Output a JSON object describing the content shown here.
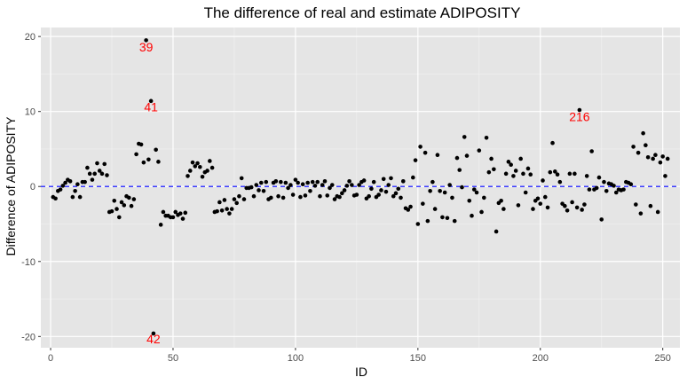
{
  "chart_data": {
    "type": "scatter",
    "title": "The difference of real and estimate ADIPOSITY",
    "xlabel": "ID",
    "ylabel": "Difference of ADIPOSITY",
    "xlim": [
      -4,
      257
    ],
    "ylim": [
      -21.5,
      21.2
    ],
    "x_ticks": [
      0,
      50,
      100,
      150,
      200,
      250
    ],
    "y_ticks": [
      -20,
      -10,
      0,
      10,
      20
    ],
    "x_tick_labels": [
      "0",
      "50",
      "100",
      "150",
      "200",
      "250"
    ],
    "y_tick_labels": [
      "-20",
      "-10",
      "0",
      "10",
      "20"
    ],
    "grid": true,
    "reference_line": {
      "y": 0,
      "style": "dashed",
      "color": "#0000ff"
    },
    "point_color": "#000000",
    "panel_background": "#e5e5e5",
    "annotation_color": "#ff0000",
    "points": [
      [
        1,
        -1.4
      ],
      [
        2,
        -1.6
      ],
      [
        3,
        -0.6
      ],
      [
        4,
        -0.4
      ],
      [
        5,
        0.1
      ],
      [
        6,
        0.5
      ],
      [
        7,
        0.9
      ],
      [
        8,
        0.7
      ],
      [
        9,
        -1.4
      ],
      [
        10,
        -0.6
      ],
      [
        11,
        0.3
      ],
      [
        12,
        -1.4
      ],
      [
        13,
        0.6
      ],
      [
        14,
        0.6
      ],
      [
        15,
        2.5
      ],
      [
        16,
        1.7
      ],
      [
        17,
        0.9
      ],
      [
        18,
        1.7
      ],
      [
        19,
        3.1
      ],
      [
        20,
        2.1
      ],
      [
        21,
        1.7
      ],
      [
        22,
        3.0
      ],
      [
        23,
        1.5
      ],
      [
        24,
        -3.4
      ],
      [
        25,
        -3.3
      ],
      [
        26,
        -1.9
      ],
      [
        27,
        -3.0
      ],
      [
        28,
        -4.1
      ],
      [
        29,
        -2.1
      ],
      [
        30,
        -2.5
      ],
      [
        31,
        -1.3
      ],
      [
        32,
        -1.5
      ],
      [
        33,
        -2.6
      ],
      [
        34,
        -1.7
      ],
      [
        35,
        4.3
      ],
      [
        36,
        5.7
      ],
      [
        37,
        5.6
      ],
      [
        38,
        3.2
      ],
      [
        39,
        19.5
      ],
      [
        40,
        3.6
      ],
      [
        41,
        11.4
      ],
      [
        42,
        -19.6
      ],
      [
        43,
        4.9
      ],
      [
        44,
        3.3
      ],
      [
        45,
        -5.1
      ],
      [
        46,
        -3.4
      ],
      [
        47,
        -3.9
      ],
      [
        48,
        -3.9
      ],
      [
        49,
        -4.1
      ],
      [
        50,
        -4.1
      ],
      [
        51,
        -3.4
      ],
      [
        52,
        -3.8
      ],
      [
        53,
        -3.6
      ],
      [
        54,
        -4.3
      ],
      [
        55,
        -3.5
      ],
      [
        56,
        1.4
      ],
      [
        57,
        2.1
      ],
      [
        58,
        3.2
      ],
      [
        59,
        2.7
      ],
      [
        60,
        3.1
      ],
      [
        61,
        2.6
      ],
      [
        62,
        1.3
      ],
      [
        63,
        1.9
      ],
      [
        64,
        2.1
      ],
      [
        65,
        3.4
      ],
      [
        66,
        2.5
      ],
      [
        67,
        -3.4
      ],
      [
        68,
        -3.3
      ],
      [
        69,
        -2.1
      ],
      [
        70,
        -3.2
      ],
      [
        71,
        -1.8
      ],
      [
        72,
        -3.0
      ],
      [
        73,
        -3.6
      ],
      [
        74,
        -3.0
      ],
      [
        75,
        -1.7
      ],
      [
        76,
        -2.2
      ],
      [
        77,
        -1.3
      ],
      [
        78,
        1.1
      ],
      [
        79,
        -1.7
      ],
      [
        80,
        -0.2
      ],
      [
        81,
        -0.2
      ],
      [
        82,
        -0.1
      ],
      [
        83,
        -1.3
      ],
      [
        84,
        0.2
      ],
      [
        85,
        -0.5
      ],
      [
        86,
        0.5
      ],
      [
        87,
        -0.6
      ],
      [
        88,
        0.6
      ],
      [
        89,
        -1.7
      ],
      [
        90,
        -1.5
      ],
      [
        91,
        0.5
      ],
      [
        92,
        0.7
      ],
      [
        93,
        -1.3
      ],
      [
        94,
        0.6
      ],
      [
        95,
        -1.5
      ],
      [
        96,
        0.5
      ],
      [
        97,
        -0.2
      ],
      [
        98,
        0.2
      ],
      [
        99,
        -1.1
      ],
      [
        100,
        0.9
      ],
      [
        101,
        0.5
      ],
      [
        102,
        -1.4
      ],
      [
        103,
        0.3
      ],
      [
        104,
        -1.2
      ],
      [
        105,
        0.5
      ],
      [
        106,
        -0.6
      ],
      [
        107,
        0.6
      ],
      [
        108,
        0.1
      ],
      [
        109,
        0.6
      ],
      [
        110,
        -1.3
      ],
      [
        111,
        0.2
      ],
      [
        112,
        0.7
      ],
      [
        113,
        -1.2
      ],
      [
        114,
        -0.2
      ],
      [
        115,
        0.2
      ],
      [
        116,
        -1.7
      ],
      [
        117,
        -1.3
      ],
      [
        118,
        -1.4
      ],
      [
        119,
        -0.9
      ],
      [
        120,
        -0.5
      ],
      [
        121,
        0.1
      ],
      [
        122,
        0.7
      ],
      [
        123,
        0.2
      ],
      [
        124,
        -1.2
      ],
      [
        125,
        -1.1
      ],
      [
        126,
        0.2
      ],
      [
        127,
        0.6
      ],
      [
        128,
        0.8
      ],
      [
        129,
        -1.6
      ],
      [
        130,
        -1.3
      ],
      [
        131,
        -0.3
      ],
      [
        132,
        0.6
      ],
      [
        133,
        -1.4
      ],
      [
        134,
        -1.1
      ],
      [
        135,
        -0.5
      ],
      [
        136,
        1.0
      ],
      [
        137,
        -0.7
      ],
      [
        138,
        0.2
      ],
      [
        139,
        1.1
      ],
      [
        140,
        -1.3
      ],
      [
        141,
        -0.9
      ],
      [
        142,
        -0.3
      ],
      [
        143,
        -1.5
      ],
      [
        144,
        0.7
      ],
      [
        145,
        -2.9
      ],
      [
        146,
        -3.1
      ],
      [
        147,
        -2.7
      ],
      [
        148,
        1.2
      ],
      [
        149,
        3.5
      ],
      [
        150,
        -5.0
      ],
      [
        151,
        5.3
      ],
      [
        152,
        -2.3
      ],
      [
        153,
        4.5
      ],
      [
        154,
        -4.6
      ],
      [
        155,
        -0.6
      ],
      [
        156,
        0.6
      ],
      [
        157,
        -3.0
      ],
      [
        158,
        4.2
      ],
      [
        159,
        -0.6
      ],
      [
        160,
        -4.1
      ],
      [
        161,
        -0.8
      ],
      [
        162,
        -4.2
      ],
      [
        163,
        0.2
      ],
      [
        164,
        -1.5
      ],
      [
        165,
        -4.6
      ],
      [
        166,
        3.8
      ],
      [
        167,
        2.2
      ],
      [
        168,
        -0.1
      ],
      [
        169,
        6.6
      ],
      [
        170,
        4.1
      ],
      [
        171,
        -1.9
      ],
      [
        172,
        -3.9
      ],
      [
        173,
        -0.4
      ],
      [
        174,
        -0.8
      ],
      [
        175,
        4.8
      ],
      [
        176,
        -3.4
      ],
      [
        177,
        -1.5
      ],
      [
        178,
        6.5
      ],
      [
        179,
        1.9
      ],
      [
        180,
        3.7
      ],
      [
        181,
        2.3
      ],
      [
        182,
        -6.0
      ],
      [
        183,
        -2.2
      ],
      [
        184,
        -1.9
      ],
      [
        185,
        -3.0
      ],
      [
        186,
        1.7
      ],
      [
        187,
        3.3
      ],
      [
        188,
        2.9
      ],
      [
        189,
        1.4
      ],
      [
        190,
        2.1
      ],
      [
        191,
        -2.5
      ],
      [
        192,
        3.7
      ],
      [
        193,
        1.7
      ],
      [
        194,
        -0.8
      ],
      [
        195,
        2.4
      ],
      [
        196,
        1.6
      ],
      [
        197,
        -3.0
      ],
      [
        198,
        -1.9
      ],
      [
        199,
        -1.6
      ],
      [
        200,
        -2.3
      ],
      [
        201,
        0.8
      ],
      [
        202,
        -1.4
      ],
      [
        203,
        -2.8
      ],
      [
        204,
        1.9
      ],
      [
        205,
        5.8
      ],
      [
        206,
        2.0
      ],
      [
        207,
        1.6
      ],
      [
        208,
        0.6
      ],
      [
        209,
        -2.3
      ],
      [
        210,
        -2.6
      ],
      [
        211,
        -3.2
      ],
      [
        212,
        1.7
      ],
      [
        213,
        -2.1
      ],
      [
        214,
        1.7
      ],
      [
        215,
        -2.8
      ],
      [
        216,
        10.2
      ],
      [
        217,
        -3.1
      ],
      [
        218,
        -2.4
      ],
      [
        219,
        1.4
      ],
      [
        220,
        -0.4
      ],
      [
        221,
        4.7
      ],
      [
        222,
        -0.4
      ],
      [
        223,
        -0.2
      ],
      [
        224,
        1.2
      ],
      [
        225,
        -4.4
      ],
      [
        226,
        0.6
      ],
      [
        227,
        -0.6
      ],
      [
        228,
        0.4
      ],
      [
        229,
        0.3
      ],
      [
        230,
        0.1
      ],
      [
        231,
        -0.8
      ],
      [
        232,
        -0.4
      ],
      [
        233,
        -0.5
      ],
      [
        234,
        -0.4
      ],
      [
        235,
        0.6
      ],
      [
        236,
        0.5
      ],
      [
        237,
        0.3
      ],
      [
        238,
        5.3
      ],
      [
        239,
        -2.4
      ],
      [
        240,
        4.5
      ],
      [
        241,
        -3.6
      ],
      [
        242,
        7.1
      ],
      [
        243,
        5.5
      ],
      [
        244,
        3.9
      ],
      [
        245,
        -2.6
      ],
      [
        246,
        3.7
      ],
      [
        247,
        4.2
      ],
      [
        248,
        -3.4
      ],
      [
        249,
        3.2
      ],
      [
        250,
        4.0
      ],
      [
        251,
        1.4
      ],
      [
        252,
        3.7
      ]
    ],
    "annotations": [
      {
        "text": "39",
        "x": 39,
        "y": 19.5,
        "label_y": 18.6
      },
      {
        "text": "41",
        "x": 41,
        "y": 11.4,
        "label_y": 10.6
      },
      {
        "text": "216",
        "x": 216,
        "y": 10.2,
        "label_y": 9.3
      },
      {
        "text": "42",
        "x": 42,
        "y": -19.6,
        "label_y": -20.3
      }
    ]
  }
}
